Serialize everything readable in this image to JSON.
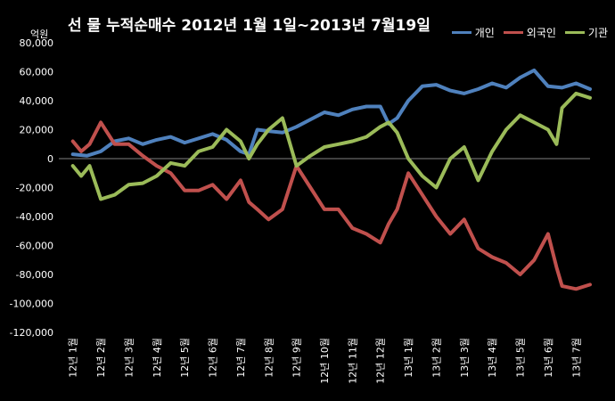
{
  "title": "선 물 누적순매수 2012년 1월 1일~2013년 7월19일",
  "unit": "억원",
  "colors": {
    "개인": "#4F81BD",
    "외국인": "#C0504D",
    "기관": "#9BBB59",
    "background": "#000000",
    "zero_line": "#808080"
  },
  "chart_data": {
    "type": "line",
    "title": "선 물 누적순매수 2012년 1월 1일~2013년 7월19일",
    "ylabel": "억원",
    "xlabel": "",
    "ylim": [
      -120000,
      80000
    ],
    "y_ticks": [
      "80,000",
      "60,000",
      "40,000",
      "20,000",
      "0",
      "-20,000",
      "-40,000",
      "-60,000",
      "-80,000",
      "-100,000",
      "-120,000"
    ],
    "categories": [
      "12년 1월",
      "12년 2월",
      "12년 3월",
      "12년 4월",
      "12년 5월",
      "12년 6월",
      "12년 7월",
      "12년 8월",
      "12년 9월",
      "12년 10월",
      "12년 11월",
      "12년 12월",
      "13년 1월",
      "13년 2월",
      "13년 3월",
      "13년 4월",
      "13년 5월",
      "13년 6월",
      "13년 7월"
    ],
    "legend_position": "top-right",
    "grid": "horizontal",
    "series": [
      {
        "name": "개인",
        "color": "#4F81BD",
        "x": [
          0,
          0.5,
          1,
          1.5,
          2,
          2.5,
          3,
          3.5,
          4,
          4.5,
          5,
          5.5,
          6,
          6.3,
          6.6,
          7,
          7.5,
          8,
          8.5,
          9,
          9.5,
          10,
          10.5,
          11,
          11.3,
          11.6,
          12,
          12.5,
          13,
          13.5,
          14,
          14.5,
          15,
          15.5,
          16,
          16.5,
          17,
          17.5,
          18,
          18.5
        ],
        "values": [
          3000,
          2000,
          5000,
          12000,
          14000,
          10000,
          13000,
          15000,
          11000,
          14000,
          17000,
          13000,
          5000,
          3000,
          20000,
          19000,
          18000,
          22000,
          27000,
          32000,
          30000,
          34000,
          36000,
          36000,
          24000,
          28000,
          40000,
          50000,
          51000,
          47000,
          45000,
          48000,
          52000,
          49000,
          56000,
          61000,
          50000,
          49000,
          52000,
          48000
        ]
      },
      {
        "name": "외국인",
        "color": "#C0504D",
        "x": [
          0,
          0.3,
          0.6,
          1,
          1.5,
          2,
          2.5,
          3,
          3.5,
          4,
          4.5,
          5,
          5.5,
          6,
          6.3,
          6.6,
          7,
          7.5,
          8,
          8.5,
          9,
          9.5,
          10,
          10.5,
          11,
          11.3,
          11.6,
          12,
          12.5,
          13,
          13.5,
          14,
          14.5,
          15,
          15.5,
          16,
          16.5,
          17,
          17.3,
          17.5,
          18,
          18.5
        ],
        "values": [
          12000,
          5000,
          10000,
          25000,
          10000,
          10000,
          2000,
          -5000,
          -10000,
          -22000,
          -22000,
          -18000,
          -28000,
          -15000,
          -30000,
          -35000,
          -42000,
          -35000,
          -5000,
          -20000,
          -35000,
          -35000,
          -48000,
          -52000,
          -58000,
          -45000,
          -35000,
          -10000,
          -25000,
          -40000,
          -52000,
          -42000,
          -62000,
          -68000,
          -72000,
          -80000,
          -70000,
          -52000,
          -75000,
          -88000,
          -90000,
          -87000
        ]
      },
      {
        "name": "기관",
        "color": "#9BBB59",
        "x": [
          0,
          0.3,
          0.6,
          1,
          1.5,
          2,
          2.5,
          3,
          3.5,
          4,
          4.5,
          5,
          5.5,
          6,
          6.3,
          6.6,
          7,
          7.5,
          8,
          8.5,
          9,
          9.5,
          10,
          10.5,
          11,
          11.3,
          11.6,
          12,
          12.5,
          13,
          13.5,
          14,
          14.5,
          15,
          15.5,
          16,
          16.5,
          17,
          17.3,
          17.5,
          18,
          18.5
        ],
        "values": [
          -5000,
          -12000,
          -5000,
          -28000,
          -25000,
          -18000,
          -17000,
          -12000,
          -3000,
          -5000,
          5000,
          8000,
          20000,
          12000,
          0,
          10000,
          20000,
          28000,
          -5000,
          2000,
          8000,
          10000,
          12000,
          15000,
          22000,
          25000,
          18000,
          0,
          -12000,
          -20000,
          0,
          8000,
          -15000,
          5000,
          20000,
          30000,
          25000,
          20000,
          10000,
          35000,
          45000,
          42000
        ]
      }
    ]
  }
}
